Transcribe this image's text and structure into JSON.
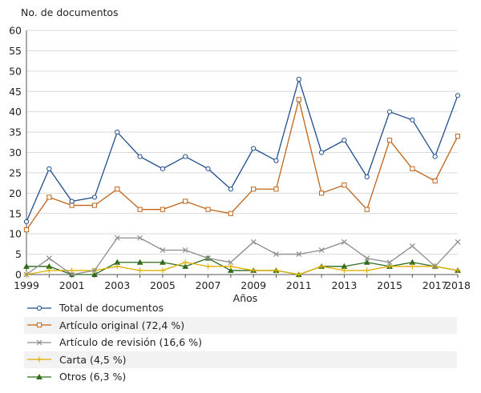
{
  "chart_data": {
    "type": "line",
    "title": "No. de documentos",
    "xlabel": "Años",
    "ylabel": "No. de documentos",
    "ylim": [
      0,
      60
    ],
    "yticks": [
      "0",
      "5",
      "10",
      "15",
      "20",
      "25",
      "30",
      "35",
      "40",
      "45",
      "50",
      "55",
      "60"
    ],
    "x": [
      1999,
      2000,
      2001,
      2002,
      2003,
      2004,
      2005,
      2006,
      2007,
      2008,
      2009,
      2010,
      2011,
      2012,
      2013,
      2014,
      2015,
      2016,
      2017,
      2018
    ],
    "xticks": [
      "1999",
      "2001",
      "2003",
      "2005",
      "2007",
      "2009",
      "2011",
      "2013",
      "2015",
      "2017",
      "2018"
    ],
    "grid": true,
    "legend_position": "bottom",
    "series": [
      {
        "name": "Total de documentos",
        "color": "#1f4e8c",
        "marker": "circle",
        "values": [
          13,
          26,
          18,
          19,
          35,
          29,
          26,
          29,
          26,
          21,
          31,
          28,
          48,
          30,
          33,
          24,
          40,
          38,
          29,
          44
        ]
      },
      {
        "name": "Artículo original (72,4 %)",
        "color": "#c0641a",
        "marker": "square",
        "values": [
          11,
          19,
          17,
          17,
          21,
          16,
          16,
          18,
          16,
          15,
          21,
          21,
          43,
          20,
          22,
          16,
          33,
          26,
          23,
          34
        ]
      },
      {
        "name": "Artículo de revisión (16,6 %)",
        "color": "#8c8c8c",
        "marker": "x",
        "values": [
          0,
          4,
          0,
          1,
          9,
          9,
          6,
          6,
          4,
          3,
          8,
          5,
          5,
          6,
          8,
          4,
          3,
          7,
          2,
          8
        ]
      },
      {
        "name": "Carta (4,5 %)",
        "color": "#e0b000",
        "marker": "plus",
        "values": [
          0,
          1,
          1,
          1,
          2,
          1,
          1,
          3,
          2,
          2,
          1,
          1,
          0,
          2,
          1,
          1,
          2,
          2,
          2,
          1
        ]
      },
      {
        "name": "Otros (6,3 %)",
        "color": "#2e6b1a",
        "marker": "triangle",
        "values": [
          2,
          2,
          0,
          0,
          3,
          3,
          3,
          2,
          4,
          1,
          1,
          1,
          0,
          2,
          2,
          3,
          2,
          3,
          2,
          1
        ]
      }
    ]
  }
}
